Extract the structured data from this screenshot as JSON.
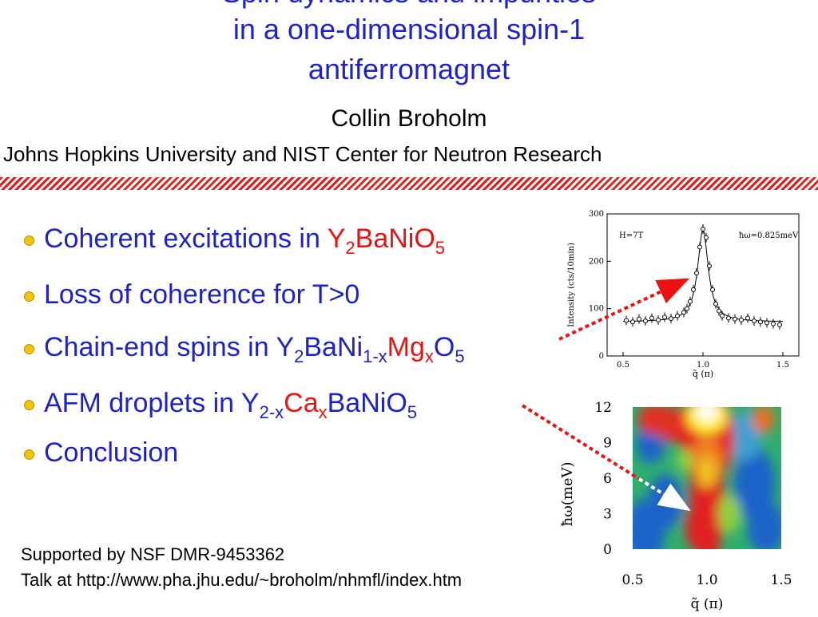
{
  "slide": {
    "title_line0": "Spin dynamics and impurities",
    "title_line1": "in a one-dimensional spin-1",
    "title_line2": "antiferromagnet",
    "author": "Collin Broholm",
    "affiliation": "Johns Hopkins University and NIST Center for Neutron Research",
    "bullets": [
      {
        "pre": "Coherent excitations in ",
        "formula": [
          {
            "t": "Y",
            "c": "red"
          },
          {
            "s": "2",
            "c": "red"
          },
          {
            "t": "BaNiO",
            "c": "red"
          },
          {
            "s": "5",
            "c": "red"
          }
        ]
      },
      {
        "pre": "Loss of coherence for T>0"
      },
      {
        "pre": "Chain-end spins in Y",
        "s1": "2",
        "m1": "BaNi",
        "s2": "1-x",
        "m2": "Mg",
        "s3": "x",
        "m3": "O",
        "s4": "5"
      },
      {
        "pre": "AFM droplets in Y",
        "s1": "2-x",
        "m1": "Ca",
        "s2": "x",
        "m2": "BaNiO",
        "s3": "5"
      },
      {
        "pre": "Conclusion"
      }
    ],
    "footer1": "Supported by NSF DMR-9453362",
    "footer2": "Talk at http://www.pha.jhu.edu/~broholm/nhmfl/index.htm"
  },
  "chart_data": [
    {
      "type": "scatter",
      "title": "",
      "annotations": [
        "H=7T",
        "ħω=0.825meV"
      ],
      "xlabel": "q̃ (π)",
      "ylabel": "Intensity (cts/10min)",
      "xlim": [
        0.4,
        1.6
      ],
      "ylim": [
        0,
        300
      ],
      "xticks": [
        "0.5",
        "1.0",
        "1.5"
      ],
      "yticks": [
        "0",
        "100",
        "200",
        "300"
      ],
      "x": [
        0.52,
        0.56,
        0.6,
        0.64,
        0.68,
        0.72,
        0.76,
        0.8,
        0.84,
        0.88,
        0.9,
        0.92,
        0.94,
        0.96,
        0.98,
        1.0,
        1.02,
        1.04,
        1.06,
        1.08,
        1.1,
        1.12,
        1.16,
        1.2,
        1.24,
        1.28,
        1.32,
        1.36,
        1.4,
        1.44,
        1.48
      ],
      "y": [
        75,
        72,
        78,
        74,
        80,
        76,
        82,
        79,
        85,
        92,
        100,
        115,
        140,
        175,
        230,
        268,
        250,
        190,
        140,
        110,
        95,
        85,
        80,
        78,
        76,
        80,
        74,
        72,
        70,
        68,
        66
      ]
    },
    {
      "type": "heatmap",
      "title": "",
      "xlabel": "q̃ (π)",
      "ylabel": "ħω(meV)",
      "xlim": [
        0.5,
        1.5
      ],
      "ylim": [
        0,
        12
      ],
      "xticks": [
        "0.5",
        "1.0",
        "1.5"
      ],
      "yticks": [
        "0",
        "3",
        "6",
        "9",
        "12"
      ]
    }
  ],
  "colors": {
    "title": "#1e22c8",
    "highlight": "#ee1111",
    "bullet": "#f0c400",
    "stripe": "#e02020"
  }
}
